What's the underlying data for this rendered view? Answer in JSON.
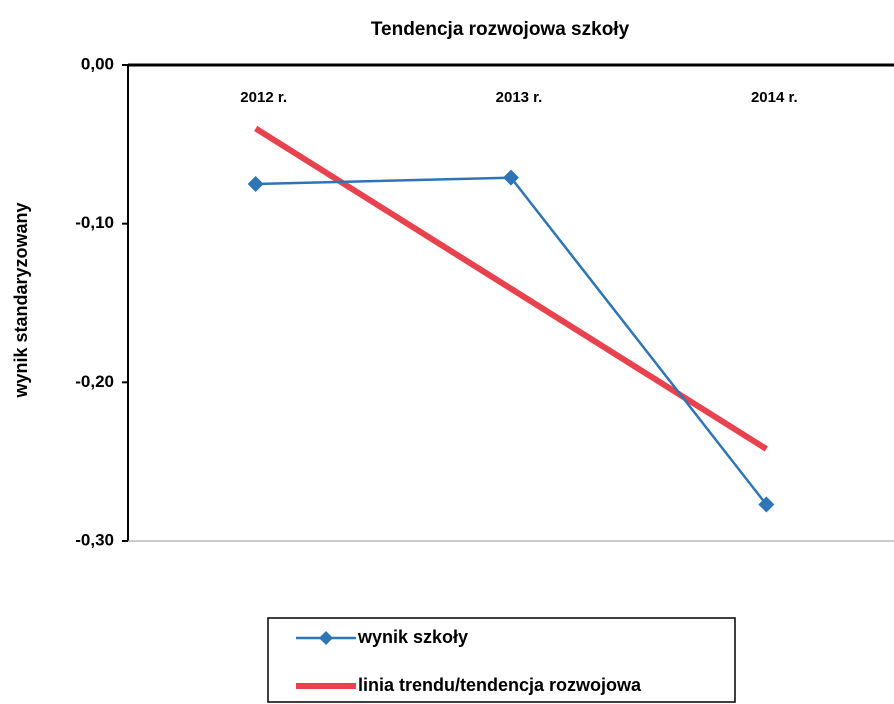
{
  "chart_data": {
    "type": "line",
    "title": "Tendencja rozwojowa szkoły",
    "y_label": "wynik standaryzowany",
    "categories": [
      "2012 r.",
      "2013 r.",
      "2014 r."
    ],
    "series": [
      {
        "name": "wynik szkoły",
        "color": "#2e75b6",
        "marker": "diamond",
        "values": [
          -0.075,
          -0.071,
          -0.277
        ]
      },
      {
        "name": "linia trendu/tendencja rozwojowa",
        "color": "#e8424f",
        "marker": "none",
        "values": [
          -0.04,
          -0.141,
          -0.242
        ]
      }
    ],
    "ylim": [
      -0.3,
      0
    ],
    "yticks": [
      {
        "value": 0,
        "label": "0,00"
      },
      {
        "value": -0.1,
        "label": "-0,10"
      },
      {
        "value": -0.2,
        "label": "-0,20"
      },
      {
        "value": -0.3,
        "label": "-0,30"
      }
    ],
    "grid": false,
    "legend": "bottom"
  }
}
